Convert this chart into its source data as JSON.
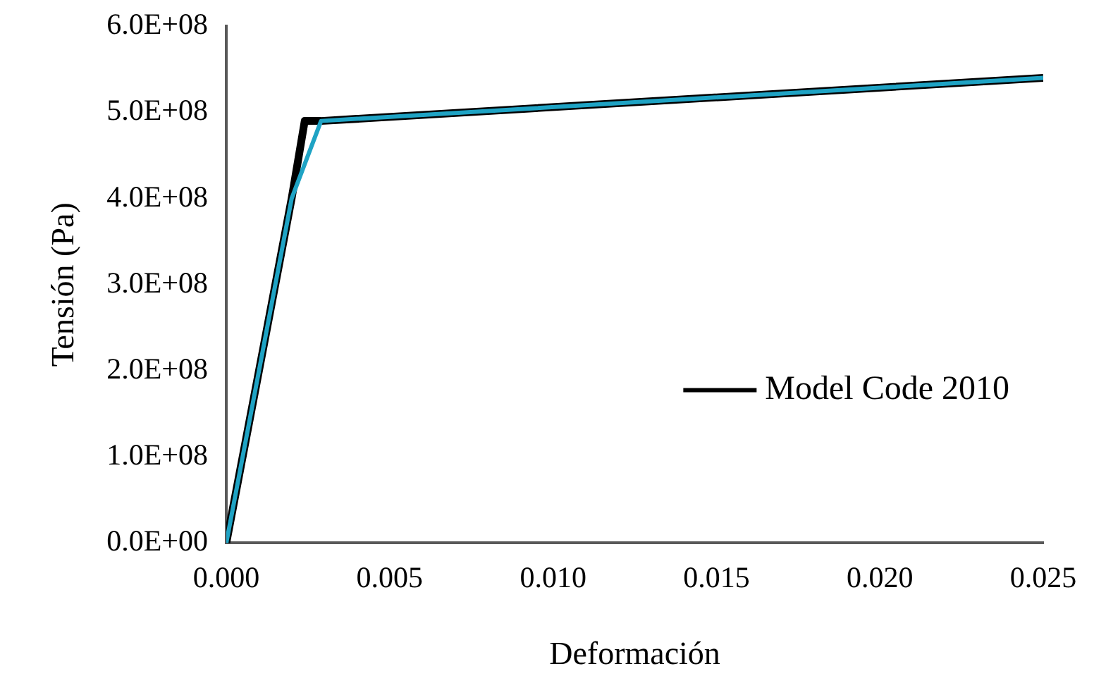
{
  "chart_data": {
    "type": "line",
    "xlabel": "Deformación",
    "ylabel": "Tensión (Pa)",
    "xlim": [
      0,
      0.025
    ],
    "ylim": [
      0,
      600000000
    ],
    "xticks": [
      {
        "value": 0,
        "label": "0.000"
      },
      {
        "value": 0.005,
        "label": "0.005"
      },
      {
        "value": 0.01,
        "label": "0.010"
      },
      {
        "value": 0.015,
        "label": "0.015"
      },
      {
        "value": 0.02,
        "label": "0.020"
      },
      {
        "value": 0.025,
        "label": "0.025"
      }
    ],
    "yticks": [
      {
        "value": 0,
        "label": "0.0E+00"
      },
      {
        "value": 100000000,
        "label": "1.0E+08"
      },
      {
        "value": 200000000,
        "label": "2.0E+08"
      },
      {
        "value": 300000000,
        "label": "3.0E+08"
      },
      {
        "value": 400000000,
        "label": "4.0E+08"
      },
      {
        "value": 500000000,
        "label": "5.0E+08"
      },
      {
        "value": 600000000,
        "label": "6.0E+08"
      }
    ],
    "grid": false,
    "legend": "bottom right",
    "marker": "none",
    "line_style": "solid",
    "series": [
      {
        "name": "Model Code 2010",
        "color": "#000000",
        "x": [
          0,
          0.002,
          0.0024,
          0.0029,
          0.025
        ],
        "values": [
          0,
          400000000,
          490000000,
          490000000,
          540000000
        ]
      },
      {
        "color": "#1fa3c4",
        "x": [
          0,
          0.002,
          0.0029,
          0.025
        ],
        "values": [
          0,
          400000000,
          490000000,
          540000000
        ]
      }
    ]
  }
}
